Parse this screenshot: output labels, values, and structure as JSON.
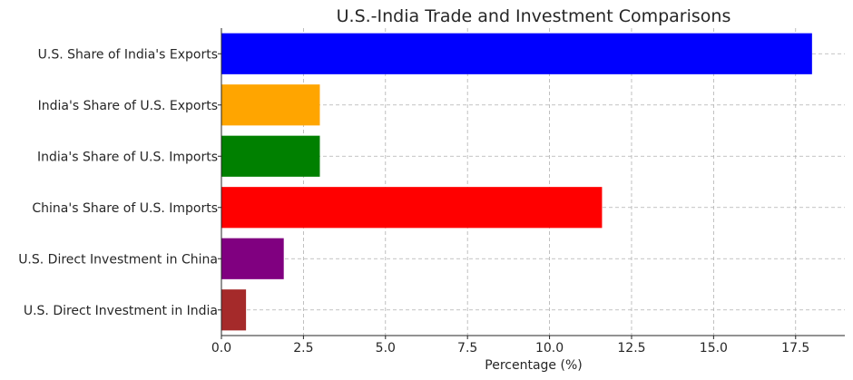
{
  "chart_data": {
    "type": "bar",
    "orientation": "horizontal",
    "title": "U.S.-India Trade and Investment Comparisons",
    "xlabel": "Percentage (%)",
    "ylabel": "",
    "xlim": [
      0,
      19
    ],
    "xticks": [
      0,
      2.5,
      5,
      7.5,
      10,
      12.5,
      15,
      17.5
    ],
    "xtick_labels": [
      "0.0",
      "2.5",
      "5.0",
      "7.5",
      "10.0",
      "12.5",
      "15.0",
      "17.5"
    ],
    "grid": true,
    "categories": [
      "U.S. Share of India's Exports",
      "India's Share of U.S. Exports",
      "India's Share of U.S. Imports",
      "China's Share of U.S. Imports",
      "U.S. Direct Investment in China",
      "U.S. Direct Investment in India"
    ],
    "values": [
      18.0,
      3.0,
      3.0,
      11.6,
      1.9,
      0.75
    ],
    "colors": [
      "#0000ff",
      "#ffa500",
      "#008000",
      "#ff0000",
      "#800080",
      "#a52a2a"
    ]
  }
}
